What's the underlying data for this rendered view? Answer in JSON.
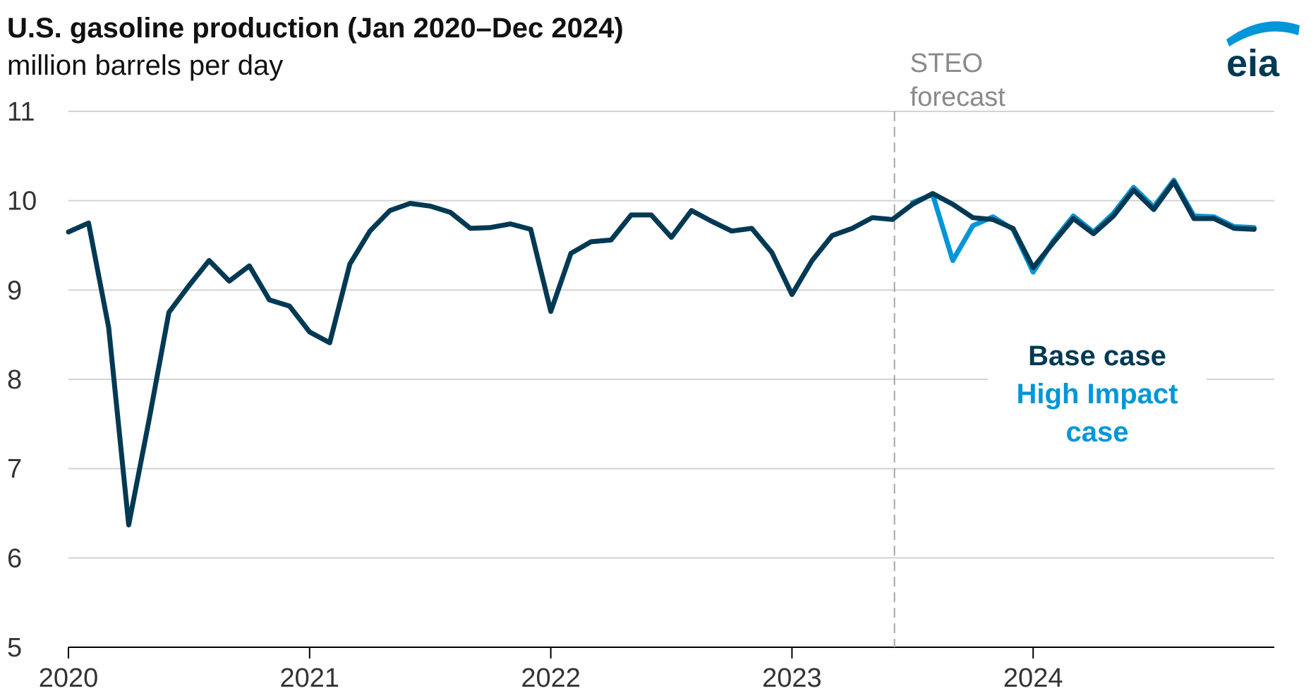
{
  "chart_data": {
    "type": "line",
    "title": "U.S. gasoline production (Jan 2020–Dec 2024)",
    "subtitle": "million barrels per day",
    "ylim": [
      5,
      11
    ],
    "yticks": [
      "5",
      "6",
      "7",
      "8",
      "9",
      "10",
      "11"
    ],
    "xlim": [
      "2020-01",
      "2024-12"
    ],
    "xticks": [
      "2020",
      "2021",
      "2022",
      "2023",
      "2024"
    ],
    "grid": true,
    "forecast_start": "2023-07",
    "forecast_label": [
      "STEO",
      "forecast"
    ],
    "legend_position": "right",
    "legend_lines": [
      {
        "text": "Base case",
        "color": "#003953"
      },
      {
        "text": "High Impact",
        "color": "#0096d7"
      },
      {
        "text": "case",
        "color": "#0096d7"
      }
    ],
    "logo_text": "eia",
    "series": [
      {
        "name": "High Impact case",
        "color": "#0096d7",
        "x_start": "2023-07",
        "values": [
          9.98,
          10.07,
          9.33,
          9.72,
          9.82,
          9.68,
          9.2,
          9.55,
          9.83,
          9.65,
          9.86,
          10.15,
          9.93,
          10.23,
          9.83,
          9.82,
          9.71,
          9.7
        ]
      },
      {
        "name": "Base case",
        "color": "#003953",
        "x_start": "2020-01",
        "values": [
          9.65,
          9.75,
          8.58,
          6.37,
          7.53,
          8.75,
          9.05,
          9.33,
          9.1,
          9.27,
          8.89,
          8.82,
          8.53,
          8.41,
          9.29,
          9.66,
          9.89,
          9.97,
          9.94,
          9.87,
          9.69,
          9.7,
          9.74,
          9.68,
          8.76,
          9.41,
          9.54,
          9.56,
          9.84,
          9.84,
          9.59,
          9.89,
          9.77,
          9.66,
          9.69,
          9.42,
          8.95,
          9.33,
          9.61,
          9.69,
          9.81,
          9.79,
          9.96,
          10.08,
          9.96,
          9.81,
          9.79,
          9.69,
          9.25,
          9.53,
          9.8,
          9.63,
          9.83,
          10.12,
          9.9,
          10.21,
          9.8,
          9.8,
          9.69,
          9.68
        ]
      }
    ]
  }
}
